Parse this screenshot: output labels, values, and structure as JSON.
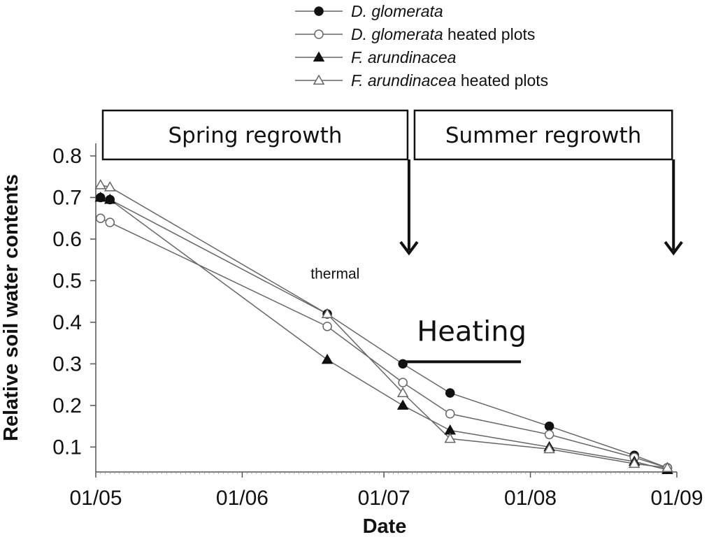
{
  "chart_data": {
    "type": "line",
    "title": "",
    "xlabel": "Date",
    "ylabel": "Relative soil water contents",
    "xlim": [
      "2010-05-01",
      "2010-09-01"
    ],
    "ylim": [
      0.04,
      0.8
    ],
    "x_ticks": [
      "2010-05-01",
      "2010-06-01",
      "2010-07-01",
      "2010-08-01",
      "2010-09-01"
    ],
    "x_tick_labels": [
      "01/05",
      "01/06",
      "01/07",
      "01/08",
      "01/09"
    ],
    "y_ticks": [
      0.1,
      0.2,
      0.3,
      0.4,
      0.5,
      0.6,
      0.7,
      0.8
    ],
    "y_tick_labels": [
      "0.1",
      "0.2",
      "0.3",
      "0.4",
      "0.5",
      "0.6",
      "0.7",
      "0.8"
    ],
    "legend_position": "top",
    "series": [
      {
        "name_italic": "D. glomerata",
        "name_plain": "",
        "marker": "circle-filled",
        "x": [
          "2010-05-02",
          "2010-05-04",
          "2010-06-19",
          "2010-07-05",
          "2010-07-15",
          "2010-08-05",
          "2010-08-23",
          "2010-08-30"
        ],
        "y": [
          0.7,
          0.695,
          0.42,
          0.3,
          0.23,
          0.15,
          0.08,
          0.05
        ]
      },
      {
        "name_italic": "D. glomerata",
        "name_plain": " heated plots",
        "marker": "circle-open",
        "x": [
          "2010-05-02",
          "2010-05-04",
          "2010-06-19",
          "2010-07-05",
          "2010-07-15",
          "2010-08-05",
          "2010-08-23",
          "2010-08-30"
        ],
        "y": [
          0.65,
          0.64,
          0.39,
          0.255,
          0.18,
          0.13,
          0.075,
          0.05
        ]
      },
      {
        "name_italic": "F. arundinacea",
        "name_plain": "",
        "marker": "triangle-filled",
        "x": [
          "2010-05-02",
          "2010-05-04",
          "2010-06-19",
          "2010-07-05",
          "2010-07-15",
          "2010-08-05",
          "2010-08-23",
          "2010-08-30"
        ],
        "y": [
          0.7,
          0.695,
          0.31,
          0.2,
          0.14,
          0.1,
          0.065,
          0.045
        ]
      },
      {
        "name_italic": "F. arundinacea",
        "name_plain": " heated plots",
        "marker": "triangle-open",
        "x": [
          "2010-05-02",
          "2010-05-04",
          "2010-06-19",
          "2010-07-05",
          "2010-07-15",
          "2010-08-05",
          "2010-08-23",
          "2010-08-30"
        ],
        "y": [
          0.73,
          0.725,
          0.42,
          0.23,
          0.12,
          0.095,
          0.06,
          0.05
        ]
      }
    ],
    "phases": [
      {
        "label": "Spring regrowth",
        "start": "2010-05-01",
        "end": "2010-07-06"
      },
      {
        "label": "Summer regrowth",
        "start": "2010-07-06",
        "end": "2010-08-31"
      }
    ],
    "phase_end_arrows": [
      "2010-07-06",
      "2010-08-31"
    ],
    "heating": {
      "label": "Heating",
      "start": "2010-07-05",
      "end": "2010-07-30",
      "y": 0.305
    },
    "annotations": [
      {
        "text": "thermal",
        "x": "2010-06-18",
        "y": 0.505
      }
    ]
  }
}
